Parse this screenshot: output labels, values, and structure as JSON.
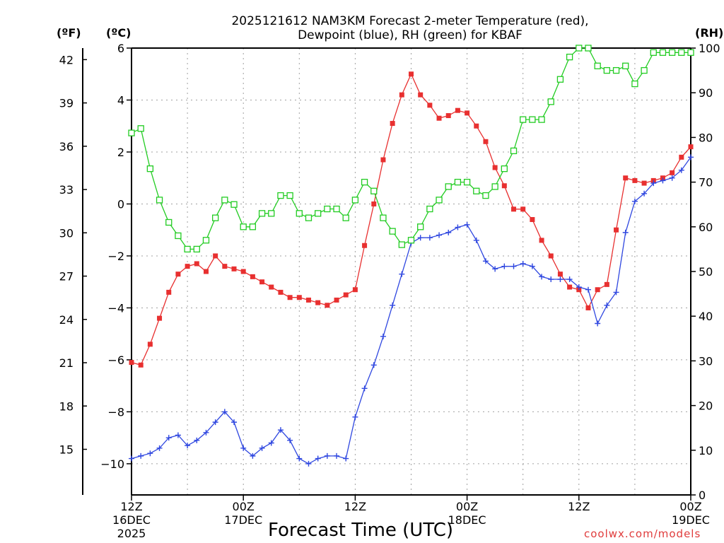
{
  "chart_data": {
    "type": "line",
    "title_line1": "2025121612 NAM3KM Forecast 2-meter Temperature (red),",
    "title_line2": "Dewpoint (blue), RH (green) for KBAF",
    "xlabel": "Forecast Time (UTC)",
    "credit": "coolwx.com/models",
    "units": {
      "fahrenheit": "(ºF)",
      "celsius": "(ºC)",
      "rh": "(RH)"
    },
    "x_range_hours": [
      0,
      60
    ],
    "ylim_celsius": [
      -11.2,
      6
    ],
    "ylim_rh": [
      0,
      100
    ],
    "celsius_ticks": [
      "6",
      "4",
      "2",
      "0",
      "−2",
      "−4",
      "−6",
      "−8",
      "−10"
    ],
    "fahrenheit_ticks": [
      "42",
      "39",
      "36",
      "33",
      "30",
      "27",
      "24",
      "21",
      "18",
      "15"
    ],
    "rh_ticks": [
      "100",
      "90",
      "80",
      "70",
      "60",
      "50",
      "40",
      "30",
      "20",
      "10",
      "0"
    ],
    "x_ticks": [
      {
        "hour": 0,
        "line1": "12Z",
        "line2": "16DEC",
        "line3": "2025"
      },
      {
        "hour": 12,
        "line1": "00Z",
        "line2": "17DEC",
        "line3": ""
      },
      {
        "hour": 24,
        "line1": "12Z",
        "line2": "",
        "line3": ""
      },
      {
        "hour": 36,
        "line1": "00Z",
        "line2": "18DEC",
        "line3": ""
      },
      {
        "hour": 48,
        "line1": "12Z",
        "line2": "",
        "line3": ""
      },
      {
        "hour": 60,
        "line1": "00Z",
        "line2": "19DEC",
        "line3": ""
      }
    ],
    "series": [
      {
        "name": "2-meter Temperature (°C)",
        "color": "#e83030",
        "marker": "filled-square",
        "axis": "celsius",
        "x": [
          0,
          1,
          2,
          3,
          4,
          5,
          6,
          7,
          8,
          9,
          10,
          11,
          12,
          13,
          14,
          15,
          16,
          17,
          18,
          19,
          20,
          21,
          22,
          23,
          24,
          25,
          26,
          27,
          28,
          29,
          30,
          31,
          32,
          33,
          34,
          35,
          36,
          37,
          38,
          39,
          40,
          41,
          42,
          43,
          44,
          45,
          46,
          47,
          48,
          49,
          50,
          51,
          52,
          53,
          54,
          55,
          56,
          57,
          58,
          59,
          60
        ],
        "values": [
          -6.1,
          -6.2,
          -5.4,
          -4.4,
          -3.4,
          -2.7,
          -2.4,
          -2.3,
          -2.6,
          -2.0,
          -2.4,
          -2.5,
          -2.6,
          -2.8,
          -3.0,
          -3.2,
          -3.4,
          -3.6,
          -3.6,
          -3.7,
          -3.8,
          -3.9,
          -3.7,
          -3.5,
          -3.3,
          -1.6,
          0.0,
          1.7,
          3.1,
          4.2,
          5.0,
          4.2,
          3.8,
          3.3,
          3.4,
          3.6,
          3.5,
          3.0,
          2.4,
          1.4,
          0.7,
          -0.2,
          -0.2,
          -0.6,
          -1.4,
          -2.0,
          -2.7,
          -3.2,
          -3.3,
          -4.0,
          -3.3,
          -3.1,
          -1.0,
          1.0,
          0.9,
          0.8,
          0.9,
          1.0,
          1.2,
          1.8,
          2.2
        ]
      },
      {
        "name": "Dewpoint (°C)",
        "color": "#2f47e0",
        "marker": "plus",
        "axis": "celsius",
        "x": [
          0,
          1,
          2,
          3,
          4,
          5,
          6,
          7,
          8,
          9,
          10,
          11,
          12,
          13,
          14,
          15,
          16,
          17,
          18,
          19,
          20,
          21,
          22,
          23,
          24,
          25,
          26,
          27,
          28,
          29,
          30,
          31,
          32,
          33,
          34,
          35,
          36,
          37,
          38,
          39,
          40,
          41,
          42,
          43,
          44,
          45,
          46,
          47,
          48,
          49,
          50,
          51,
          52,
          53,
          54,
          55,
          56,
          57,
          58,
          59,
          60
        ],
        "values": [
          -9.8,
          -9.7,
          -9.6,
          -9.4,
          -9.0,
          -8.9,
          -9.3,
          -9.1,
          -8.8,
          -8.4,
          -8.0,
          -8.4,
          -9.4,
          -9.7,
          -9.4,
          -9.2,
          -8.7,
          -9.1,
          -9.8,
          -10.0,
          -9.8,
          -9.7,
          -9.7,
          -9.8,
          -8.2,
          -7.1,
          -6.2,
          -5.1,
          -3.9,
          -2.7,
          -1.5,
          -1.3,
          -1.3,
          -1.2,
          -1.1,
          -0.9,
          -0.8,
          -1.4,
          -2.2,
          -2.5,
          -2.4,
          -2.4,
          -2.3,
          -2.4,
          -2.8,
          -2.9,
          -2.9,
          -2.9,
          -3.2,
          -3.3,
          -4.6,
          -3.9,
          -3.4,
          -1.1,
          0.1,
          0.4,
          0.8,
          0.9,
          1.0,
          1.3,
          1.8
        ]
      },
      {
        "name": "RH (%)",
        "color": "#22cc22",
        "marker": "open-square",
        "axis": "rh",
        "x": [
          0,
          1,
          2,
          3,
          4,
          5,
          6,
          7,
          8,
          9,
          10,
          11,
          12,
          13,
          14,
          15,
          16,
          17,
          18,
          19,
          20,
          21,
          22,
          23,
          24,
          25,
          26,
          27,
          28,
          29,
          30,
          31,
          32,
          33,
          34,
          35,
          36,
          37,
          38,
          39,
          40,
          41,
          42,
          43,
          44,
          45,
          46,
          47,
          48,
          49,
          50,
          51,
          52,
          53,
          54,
          55,
          56,
          57,
          58,
          59,
          60
        ],
        "values": [
          81,
          82,
          73,
          66,
          61,
          58,
          55,
          55,
          57,
          62,
          66,
          65,
          60,
          60,
          63,
          63,
          67,
          67,
          63,
          62,
          63,
          64,
          64,
          62,
          66,
          70,
          68,
          62,
          59,
          56,
          57,
          60,
          64,
          66,
          69,
          70,
          70,
          68,
          67,
          69,
          73,
          77,
          84,
          84,
          84,
          88,
          93,
          98,
          100,
          100,
          96,
          95,
          95,
          96,
          92,
          95,
          99,
          99,
          99,
          99,
          99
        ]
      }
    ]
  }
}
